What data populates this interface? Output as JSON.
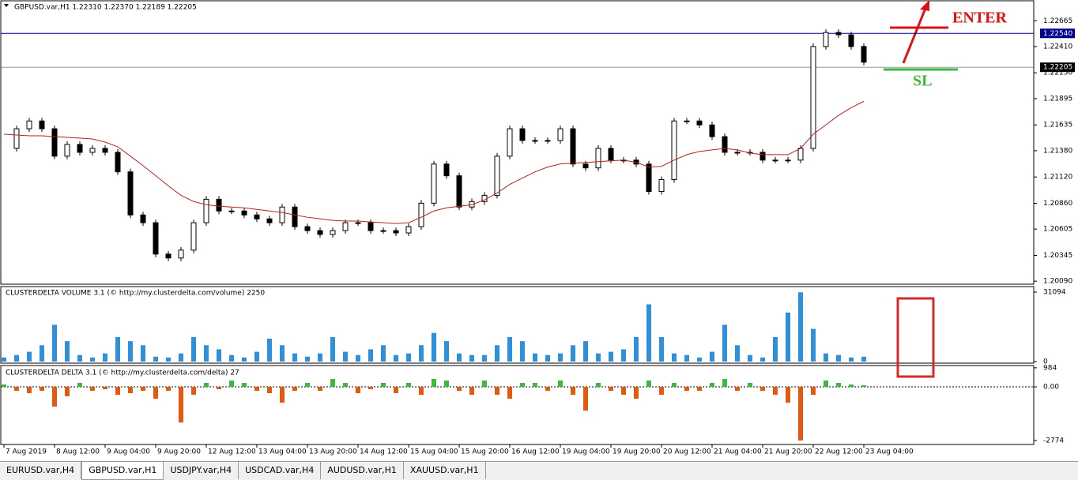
{
  "chart_data": [
    {
      "type": "candlestick",
      "title": "GBPUSD.var,H1  1.22310 1.22370 1.22189 1.22205",
      "ylim": [
        1.2006,
        1.2287
      ],
      "yticks": [
        1.22665,
        {
          "value": 1.2241,
          "label": "1.22410"
        },
        {
          "value": 1.2215,
          "label": "1.22150"
        },
        1.21895,
        1.21635,
        {
          "value": 1.2138,
          "label": "1.21380"
        },
        {
          "value": 1.2112,
          "label": "1.21120"
        },
        {
          "value": 1.2086,
          "label": "1.20860"
        },
        1.20605,
        1.20345,
        {
          "value": 1.2009,
          "label": "1.20090"
        }
      ],
      "series": [
        {
          "color": "#000000",
          "values": [
            1.21403,
            1.21597,
            1.21674,
            1.21597,
            1.21326,
            1.21442,
            1.21364,
            1.21403,
            1.21364,
            1.21171,
            1.20745,
            1.20668,
            1.20358,
            1.20319,
            1.20397,
            1.20668,
            1.209,
            1.20784,
            1.20784,
            1.20745,
            1.20706,
            1.20668,
            1.20823,
            1.20629,
            1.2059,
            1.20552,
            1.2059,
            1.20668,
            1.20668,
            1.2059,
            1.2059,
            1.20567,
            1.20629,
            1.20861,
            1.21248,
            1.21132,
            1.20823,
            1.20877,
            1.20939,
            1.21326,
            1.21597,
            1.21481,
            1.21481,
            1.21481,
            1.21597,
            1.21248,
            1.2121,
            1.21403,
            1.21287,
            1.21287,
            1.21248,
            1.20977,
            1.21094,
            1.21674,
            1.21674,
            1.21635,
            1.21519,
            1.21364,
            1.21364,
            1.21364,
            1.21287,
            1.21287,
            1.21287,
            1.21403,
            1.2241,
            1.22549,
            1.22526,
            1.2241,
            1.22255
          ]
        },
        {
          "color": "#b22222",
          "values": [
            1.21543,
            1.21535,
            1.21527,
            1.21527,
            1.2152,
            1.21512,
            1.21504,
            1.21496,
            1.21465,
            1.21419,
            1.21326,
            1.21233,
            1.21133,
            1.21032,
            1.20939,
            1.20877,
            1.20846,
            1.20831,
            1.20823,
            1.20815,
            1.208,
            1.20784,
            1.20769,
            1.20745,
            1.20722,
            1.20707,
            1.20691,
            1.20684,
            1.20684,
            1.20676,
            1.20668,
            1.2066,
            1.20668,
            1.20722,
            1.20784,
            1.20815,
            1.20831,
            1.20846,
            1.20893,
            1.20962,
            1.21047,
            1.21109,
            1.21171,
            1.21218,
            1.21249,
            1.21256,
            1.21264,
            1.21272,
            1.2128,
            1.21287,
            1.21264,
            1.21218,
            1.21225,
            1.21287,
            1.21341,
            1.21372,
            1.21388,
            1.21403,
            1.21388,
            1.21357,
            1.21341,
            1.21341,
            1.21341,
            1.21403,
            1.21543,
            1.21636,
            1.21729,
            1.21806,
            1.21868
          ]
        }
      ],
      "price_lines": [
        {
          "value": 1.2254,
          "label": "1.22540",
          "color": "#00008b"
        },
        {
          "value": 1.22205,
          "label": "1.22205",
          "color": "#000000"
        }
      ],
      "annotations": [
        {
          "text": "ENTER",
          "color": "#e01010"
        },
        {
          "text": "SL",
          "color": "#3cb93c"
        }
      ]
    },
    {
      "type": "bar",
      "title": "CLUSTERDELTA VOLUME 3.1 (© http://my.clusterdelta.com/volume) 2250",
      "color": "#2f8fd8",
      "ylim": [
        0,
        31094
      ],
      "yticks": [
        31094,
        0
      ],
      "values": [
        1830,
        2928,
        4392,
        7320,
        16470,
        9150,
        2928,
        1830,
        3660,
        10980,
        9150,
        7320,
        2196,
        1830,
        3660,
        10980,
        7320,
        5490,
        2928,
        1830,
        4392,
        10248,
        7320,
        3660,
        2196,
        3660,
        10980,
        4392,
        2928,
        5490,
        7320,
        2928,
        3660,
        7320,
        12810,
        9150,
        3660,
        2928,
        2928,
        7320,
        10980,
        9150,
        3660,
        2928,
        3660,
        7320,
        9150,
        3660,
        4392,
        5490,
        10980,
        25620,
        10980,
        3660,
        2928,
        1830,
        4392,
        16470,
        7320,
        2928,
        1830,
        10980,
        21960,
        31000,
        14640,
        3660,
        2928,
        1830,
        2196
      ]
    },
    {
      "type": "bar",
      "title": "CLUSTERDELTA DELTA 3.1 (© http://my.clusterdelta.com/delta) 27",
      "colors": {
        "positive": "#3cb93c",
        "negative": "#e05a10"
      },
      "ylim": [
        -2938,
        1102
      ],
      "yticks": [
        984,
        {
          "value": 0,
          "label": "0.00"
        },
        -2774
      ],
      "values": [
        123,
        -205,
        -328,
        -205,
        -1025,
        -492,
        205,
        -205,
        -123,
        -410,
        -328,
        -205,
        -615,
        -205,
        -1845,
        -410,
        205,
        -123,
        328,
        205,
        -205,
        -328,
        -820,
        -205,
        205,
        -205,
        410,
        205,
        -328,
        -123,
        205,
        -328,
        205,
        -410,
        410,
        328,
        -205,
        -410,
        328,
        -410,
        -615,
        205,
        205,
        -205,
        328,
        -410,
        -1230,
        205,
        -205,
        -410,
        -615,
        328,
        -410,
        205,
        -205,
        -205,
        205,
        410,
        -205,
        205,
        -205,
        -410,
        -820,
        -2774,
        -410,
        328,
        205,
        123,
        82
      ],
      "categories": [
        "7 Aug 2019",
        null,
        null,
        null,
        "8 Aug 12:00",
        null,
        null,
        null,
        "9 Aug 04:00",
        null,
        null,
        null,
        "9 Aug 20:00",
        null,
        null,
        null,
        "12 Aug 12:00",
        null,
        null,
        null,
        "13 Aug 04:00",
        null,
        null,
        null,
        "13 Aug 20:00",
        null,
        null,
        null,
        "14 Aug 12:00",
        null,
        null,
        null,
        "15 Aug 04:00",
        null,
        null,
        null,
        "15 Aug 20:00",
        null,
        null,
        null,
        "16 Aug 12:00",
        null,
        null,
        null,
        "19 Aug 04:00",
        null,
        null,
        null,
        "19 Aug 20:00",
        null,
        null,
        null,
        "20 Aug 12:00",
        null,
        null,
        null,
        "21 Aug 04:00",
        null,
        null,
        null,
        "21 Aug 20:00",
        null,
        null,
        null,
        "22 Aug 12:00",
        null,
        null,
        null,
        "23 Aug 04:00"
      ]
    }
  ],
  "tabs": [
    "EURUSD.var,H4",
    "GBPUSD.var,H1",
    "USDJPY.var,H4",
    "USDCAD.var,H4",
    "AUDUSD.var,H1",
    "XAUUSD.var,H1"
  ]
}
